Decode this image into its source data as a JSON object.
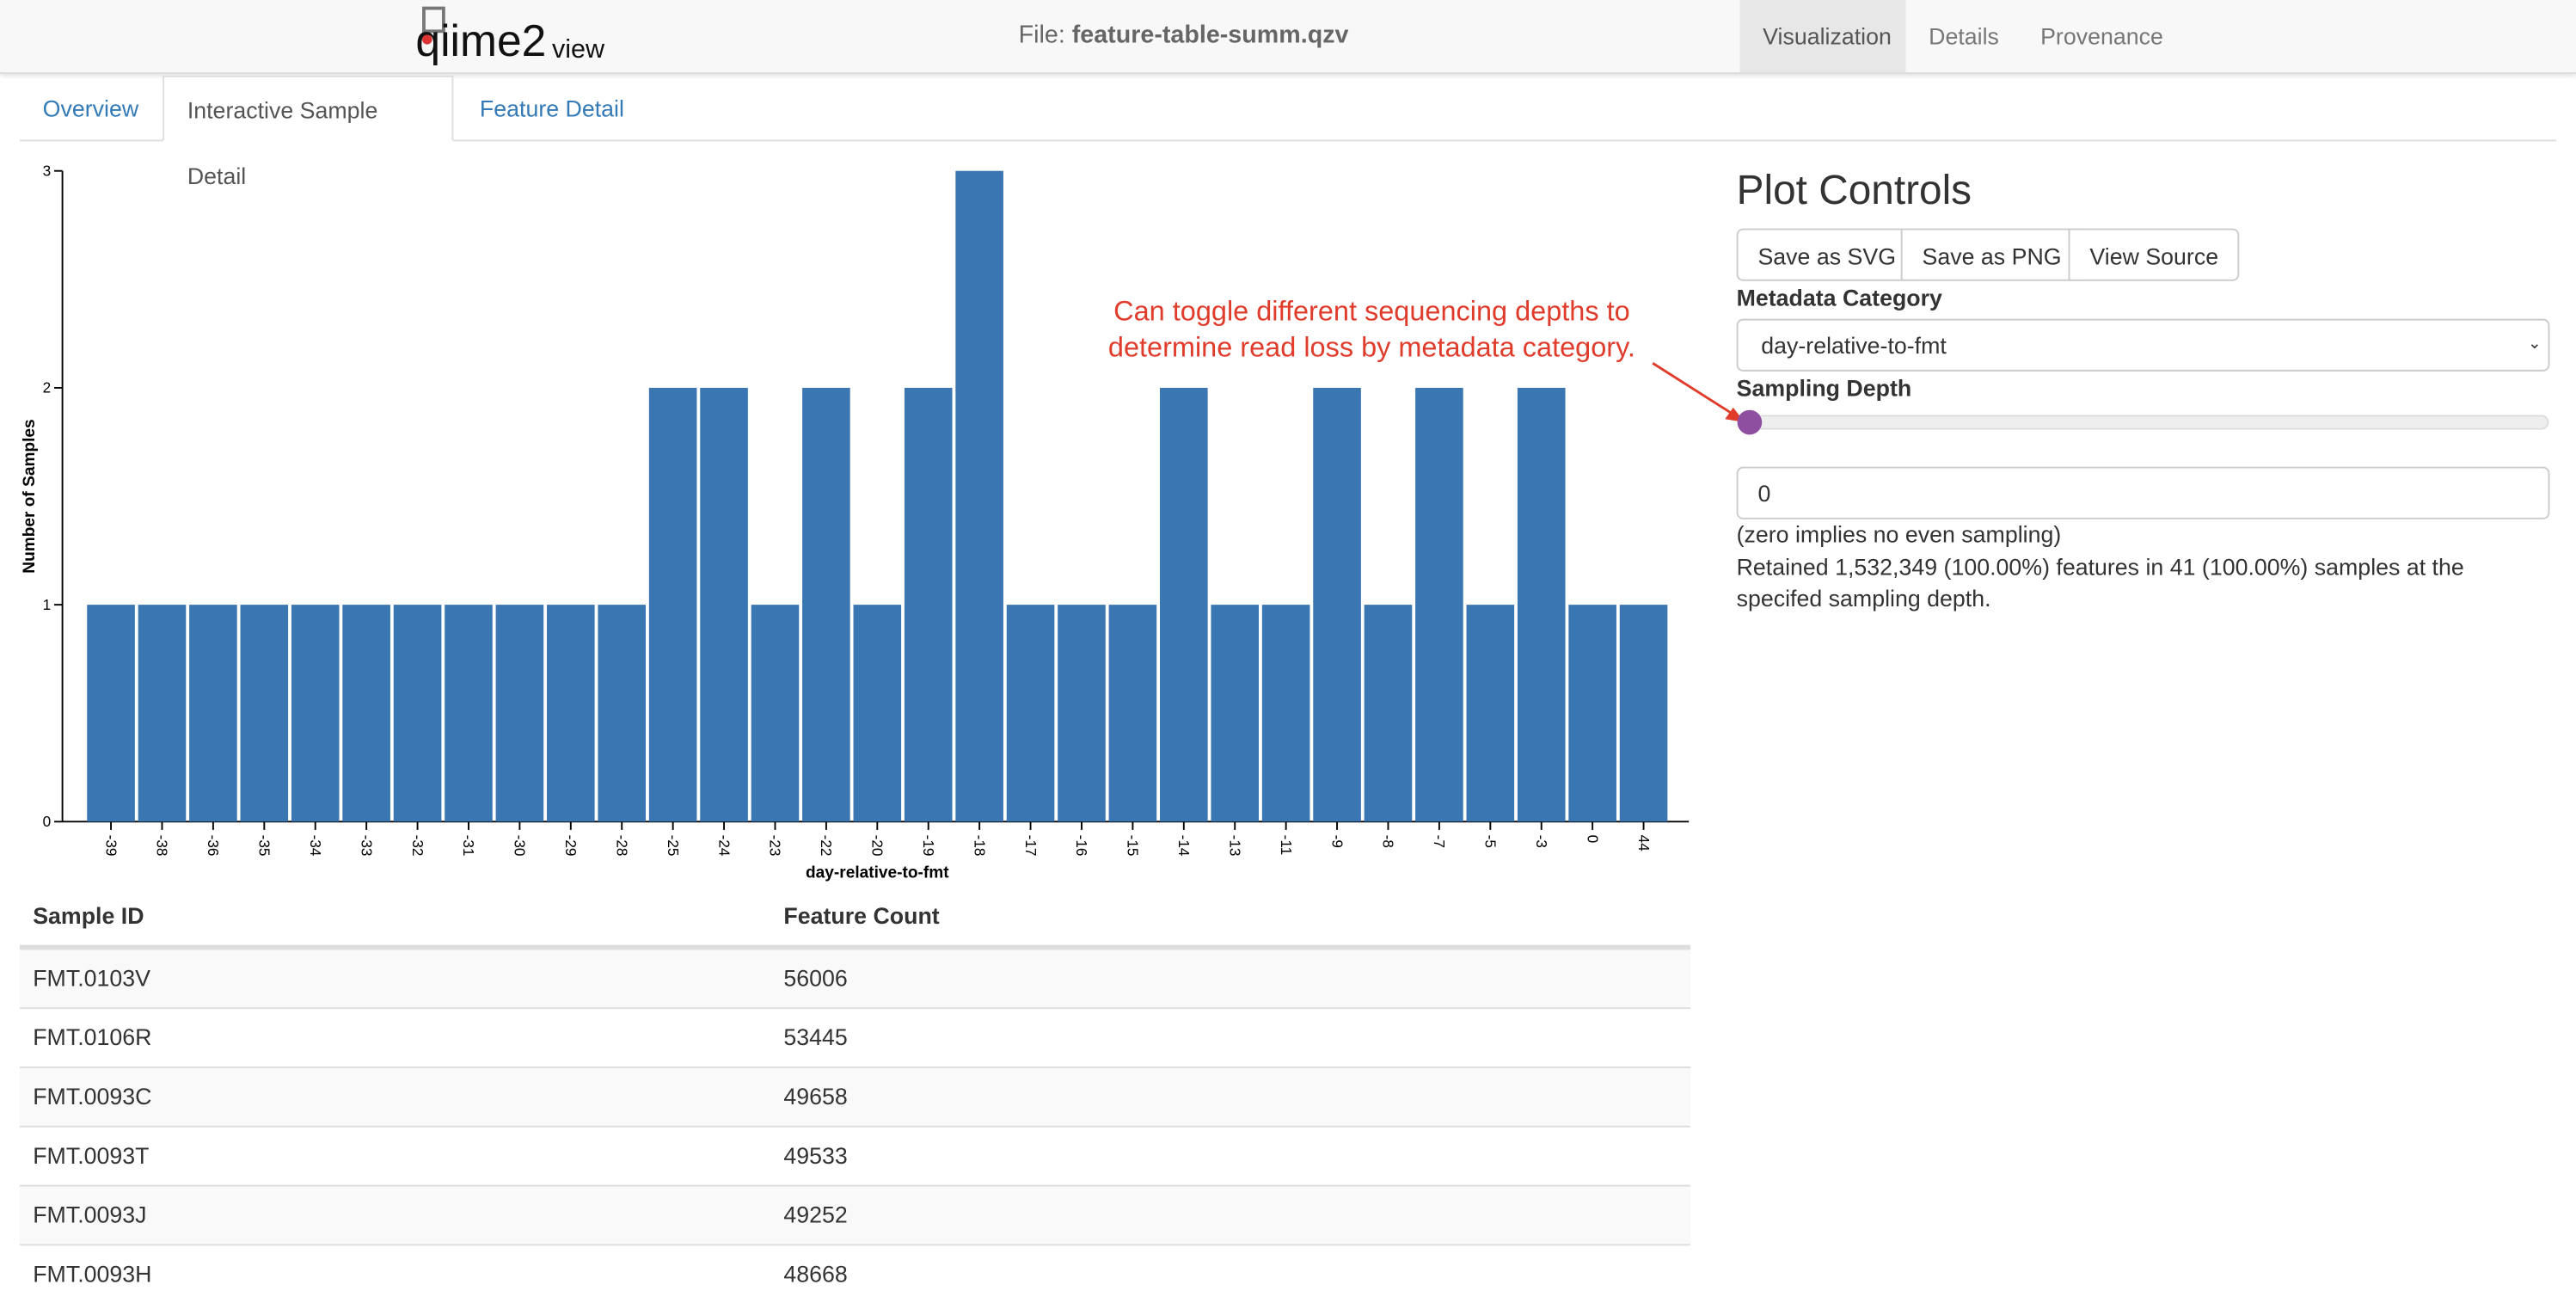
{
  "header": {
    "logo_main": "qiime2",
    "logo_sub": "view",
    "file_label": "File:",
    "file_name": "feature-table-summ.qzv",
    "nav": [
      "Visualization",
      "Details",
      "Provenance"
    ]
  },
  "tabs": [
    "Overview",
    "Interactive Sample Detail",
    "Feature Detail"
  ],
  "chart_data": {
    "type": "bar",
    "y_label": "Number of Samples",
    "x_label": "day-relative-to-fmt",
    "color": "#3a76b1",
    "categories": [
      "-39",
      "-38",
      "-36",
      "-35",
      "-34",
      "-33",
      "-32",
      "-31",
      "-30",
      "-29",
      "-28",
      "-25",
      "-24",
      "-23",
      "-22",
      "-20",
      "-19",
      "-18",
      "-17",
      "-16",
      "-15",
      "-14",
      "-13",
      "-11",
      "-9",
      "-8",
      "-7",
      "-5",
      "-3",
      "0",
      "44"
    ],
    "values": [
      1,
      1,
      1,
      1,
      1,
      1,
      1,
      1,
      1,
      1,
      1,
      2,
      2,
      1,
      2,
      1,
      2,
      3,
      1,
      1,
      1,
      2,
      1,
      1,
      2,
      1,
      2,
      1,
      2,
      1,
      1
    ],
    "ylim": [
      0,
      3
    ],
    "yticks": [
      0,
      1,
      2,
      3
    ]
  },
  "annotation": [
    "Can toggle different sequencing depths to",
    "determine read loss by metadata category."
  ],
  "table": {
    "columns": [
      "Sample ID",
      "Feature Count"
    ],
    "rows": [
      [
        "FMT.0103V",
        "56006"
      ],
      [
        "FMT.0106R",
        "53445"
      ],
      [
        "FMT.0093C",
        "49658"
      ],
      [
        "FMT.0093T",
        "49533"
      ],
      [
        "FMT.0093J",
        "49252"
      ],
      [
        "FMT.0093H",
        "48668"
      ]
    ]
  },
  "controls": {
    "title": "Plot Controls",
    "buttons": [
      "Save as SVG",
      "Save as PNG",
      "View Source"
    ],
    "metadata_label": "Metadata Category",
    "metadata_value": "day-relative-to-fmt",
    "depth_label": "Sampling Depth",
    "sampling_depth": 0,
    "note": "(zero implies no even sampling)",
    "retained": "Retained 1,532,349 (100.00%) features in 41 (100.00%) samples at the specifed sampling depth."
  }
}
